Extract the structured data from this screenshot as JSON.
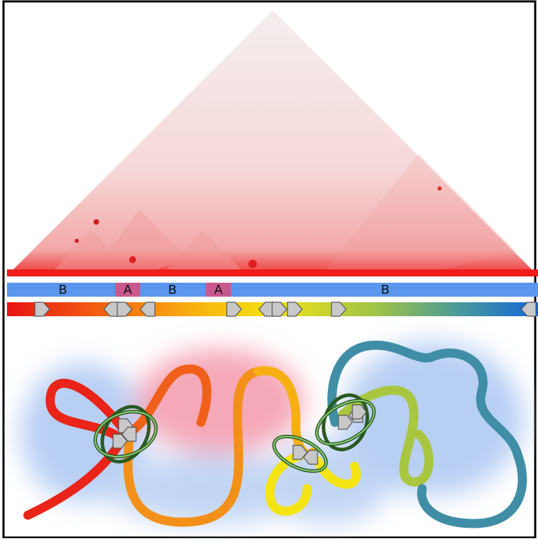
{
  "compartments": {
    "labels": [
      "B",
      "A",
      "B",
      "A",
      "B"
    ]
  }
}
